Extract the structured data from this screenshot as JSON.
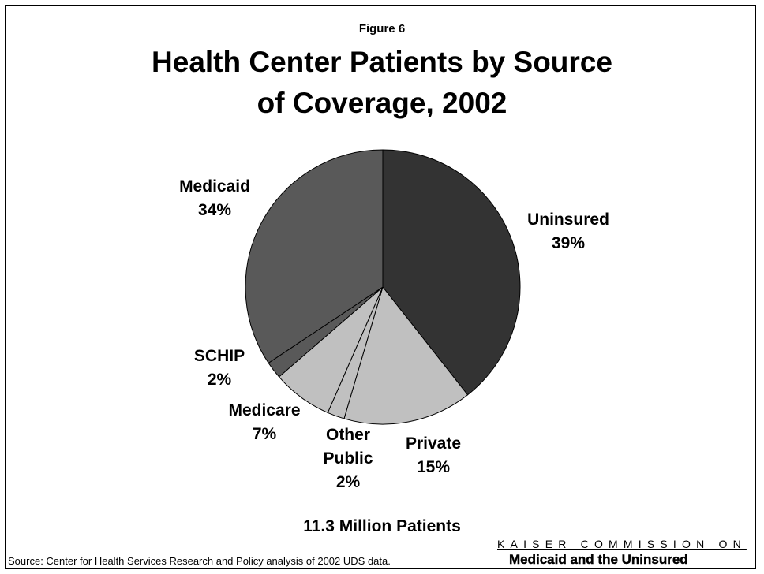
{
  "figure_label": "Figure 6",
  "title_line1": "Health Center Patients by Source",
  "title_line2": "of Coverage, 2002",
  "chart_data": {
    "type": "pie",
    "title": "Health Center Patients by Source of Coverage, 2002",
    "slices": [
      {
        "label": "Uninsured",
        "lines": [
          "Uninsured",
          "39%"
        ],
        "value": 39,
        "color": "#333333"
      },
      {
        "label": "Private",
        "lines": [
          "Private",
          "15%"
        ],
        "value": 15,
        "color": "#c0c0c0"
      },
      {
        "label": "Other Public",
        "lines": [
          "Other",
          "Public",
          "2%"
        ],
        "value": 2,
        "color": "#c0c0c0"
      },
      {
        "label": "Medicare",
        "lines": [
          "Medicare",
          "7%"
        ],
        "value": 7,
        "color": "#c0c0c0"
      },
      {
        "label": "SCHIP",
        "lines": [
          "SCHIP",
          "2%"
        ],
        "value": 2,
        "color": "#595959"
      },
      {
        "label": "Medicaid",
        "lines": [
          "Medicaid",
          "34%"
        ],
        "value": 34,
        "color": "#595959"
      }
    ]
  },
  "total_label": "11.3 Million Patients",
  "source": "Source: Center for Health Services Research and Policy analysis of 2002 UDS data.",
  "brand_top": "KAISER COMMISSION ON",
  "brand_bottom": "Medicaid and the Uninsured"
}
